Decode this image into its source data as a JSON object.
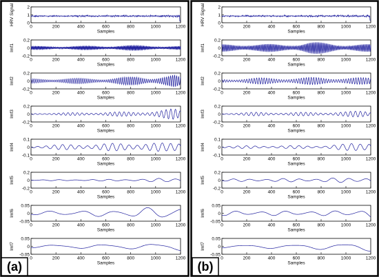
{
  "chart_data": [
    {
      "panel_label": "(a)",
      "type": "line",
      "line_color": "#1f1f9e",
      "subplots": [
        {
          "ylabel": "HRV Signal",
          "ylim": [
            0,
            2
          ],
          "yticks": [
            "2",
            "1",
            "0"
          ],
          "xlabel": "Samples",
          "xlim": [
            0,
            1200
          ],
          "xticks": [
            "0",
            "200",
            "400",
            "600",
            "800",
            "1000",
            "1200"
          ],
          "trend": 0,
          "amplitude_envelope": [
            [
              0,
              0.12
            ],
            [
              600,
              0.14
            ],
            [
              1100,
              0.16
            ],
            [
              1200,
              0.3
            ]
          ],
          "cycles_per_1200": 220,
          "note_level": 0.85
        },
        {
          "ylabel": "Imf1",
          "ylim": [
            -0.2,
            0.2
          ],
          "yticks": [
            "0.2",
            "0",
            "-0.2"
          ],
          "xlabel": "Samples",
          "xlim": [
            0,
            1200
          ],
          "xticks": [
            "0",
            "200",
            "400",
            "600",
            "800",
            "1000",
            "1200"
          ],
          "amplitude_envelope": [
            [
              0,
              0.05
            ],
            [
              600,
              0.06
            ],
            [
              700,
              0.08
            ],
            [
              900,
              0.07
            ],
            [
              1100,
              0.06
            ],
            [
              1200,
              0.05
            ]
          ],
          "cycles_per_1200": 170
        },
        {
          "ylabel": "Imf2",
          "ylim": [
            -0.2,
            0.2
          ],
          "yticks": [
            "0.2",
            "0",
            "-0.2"
          ],
          "xlabel": "Samples",
          "xlim": [
            0,
            1200
          ],
          "xticks": [
            "0",
            "200",
            "400",
            "600",
            "800",
            "1000",
            "1200"
          ],
          "amplitude_envelope": [
            [
              0,
              0.06
            ],
            [
              400,
              0.07
            ],
            [
              600,
              0.07
            ],
            [
              850,
              0.12
            ],
            [
              950,
              0.1
            ],
            [
              1150,
              0.16
            ],
            [
              1200,
              0.1
            ]
          ],
          "cycles_per_1200": 75
        },
        {
          "ylabel": "Imf3",
          "ylim": [
            -0.2,
            0.2
          ],
          "yticks": [
            "0.2",
            "0",
            "-0.2"
          ],
          "xlabel": "Samples",
          "xlim": [
            0,
            1200
          ],
          "xticks": [
            "0",
            "200",
            "400",
            "600",
            "800",
            "1000",
            "1200"
          ],
          "amplitude_envelope": [
            [
              0,
              0.02
            ],
            [
              400,
              0.04
            ],
            [
              800,
              0.06
            ],
            [
              1000,
              0.08
            ],
            [
              1150,
              0.14
            ],
            [
              1200,
              0.1
            ]
          ],
          "cycles_per_1200": 32
        },
        {
          "ylabel": "Imf4",
          "ylim": [
            -0.1,
            0.1
          ],
          "yticks": [
            "0.1",
            "0",
            "-0.1"
          ],
          "xlabel": "Samples",
          "xlim": [
            0,
            1200
          ],
          "xticks": [
            "0",
            "200",
            "400",
            "600",
            "800",
            "1000",
            "1200"
          ],
          "amplitude_envelope": [
            [
              0,
              0.02
            ],
            [
              300,
              0.035
            ],
            [
              700,
              0.05
            ],
            [
              900,
              0.06
            ],
            [
              1100,
              0.05
            ],
            [
              1200,
              0.08
            ]
          ],
          "cycles_per_1200": 18
        },
        {
          "ylabel": "Imf5",
          "ylim": [
            -0.2,
            0.2
          ],
          "yticks": [
            "0.2",
            "0",
            "-0.2"
          ],
          "xlabel": "Samples",
          "xlim": [
            0,
            1200
          ],
          "xticks": [
            "0",
            "200",
            "400",
            "600",
            "800",
            "1000",
            "1200"
          ],
          "amplitude_envelope": [
            [
              0,
              0.01
            ],
            [
              500,
              0.02
            ],
            [
              900,
              0.03
            ],
            [
              1100,
              0.06
            ],
            [
              1200,
              0.08
            ]
          ],
          "cycles_per_1200": 9
        },
        {
          "ylabel": "Imf6",
          "ylim": [
            -0.05,
            0.05
          ],
          "yticks": [
            "0.05",
            "0",
            "-0.05"
          ],
          "xlabel": "Samples",
          "xlim": [
            0,
            1200
          ],
          "xticks": [
            "0",
            "200",
            "400",
            "600",
            "800",
            "1000",
            "1200"
          ],
          "amplitude_envelope": [
            [
              0,
              0.012
            ],
            [
              400,
              0.018
            ],
            [
              800,
              0.025
            ],
            [
              1050,
              0.045
            ],
            [
              1200,
              0.04
            ]
          ],
          "cycles_per_1200": 4.6
        },
        {
          "ylabel": "Imf7",
          "ylim": [
            -0.05,
            0.05
          ],
          "yticks": [
            "0.05",
            "0",
            "-0.05"
          ],
          "xlabel": "Samples",
          "xlim": [
            0,
            1200
          ],
          "xticks": [
            "0",
            "200",
            "400",
            "600",
            "800",
            "1000",
            "1200"
          ],
          "amplitude_envelope": [
            [
              0,
              0.01
            ],
            [
              500,
              0.015
            ],
            [
              1000,
              0.02
            ],
            [
              1200,
              0.03
            ]
          ],
          "cycles_per_1200": 3
        }
      ]
    },
    {
      "panel_label": "(b)",
      "type": "line",
      "line_color": "#1f1f9e",
      "subplots": [
        {
          "ylabel": "HRV Signal",
          "ylim": [
            0,
            2
          ],
          "yticks": [
            "2",
            "1",
            "0"
          ],
          "xlabel": "Samples",
          "xlim": [
            0,
            1200
          ],
          "xticks": [
            "0",
            "200",
            "400",
            "600",
            "800",
            "1000",
            "1200"
          ],
          "trend": 0,
          "amplitude_envelope": [
            [
              0,
              0.12
            ],
            [
              600,
              0.14
            ],
            [
              1100,
              0.16
            ],
            [
              1200,
              0.25
            ]
          ],
          "cycles_per_1200": 220,
          "note_level": 0.85
        },
        {
          "ylabel": "Imf1",
          "ylim": [
            -0.2,
            0.2
          ],
          "yticks": [
            "0.2",
            "0",
            "-0.2"
          ],
          "xlabel": "Samples",
          "xlim": [
            0,
            1200
          ],
          "xticks": [
            "0",
            "200",
            "400",
            "600",
            "800",
            "1000",
            "1200"
          ],
          "amplitude_envelope": [
            [
              0,
              0.1
            ],
            [
              100,
              0.12
            ],
            [
              300,
              0.1
            ],
            [
              600,
              0.12
            ],
            [
              700,
              0.16
            ],
            [
              900,
              0.14
            ],
            [
              1000,
              0.1
            ],
            [
              1200,
              0.1
            ]
          ],
          "cycles_per_1200": 120
        },
        {
          "ylabel": "Imf2",
          "ylim": [
            -0.2,
            0.2
          ],
          "yticks": [
            "0.2",
            "0",
            "-0.2"
          ],
          "xlabel": "Samples",
          "xlim": [
            0,
            1200
          ],
          "xticks": [
            "0",
            "200",
            "400",
            "600",
            "800",
            "1000",
            "1200"
          ],
          "amplitude_envelope": [
            [
              0,
              0.05
            ],
            [
              300,
              0.08
            ],
            [
              600,
              0.08
            ],
            [
              800,
              0.1
            ],
            [
              1000,
              0.08
            ],
            [
              1200,
              0.09
            ]
          ],
          "cycles_per_1200": 60
        },
        {
          "ylabel": "Imf3",
          "ylim": [
            -0.2,
            0.2
          ],
          "yticks": [
            "0.2",
            "0",
            "-0.2"
          ],
          "xlabel": "Samples",
          "xlim": [
            0,
            1200
          ],
          "xticks": [
            "0",
            "200",
            "400",
            "600",
            "800",
            "1000",
            "1200"
          ],
          "amplitude_envelope": [
            [
              0,
              0.02
            ],
            [
              300,
              0.05
            ],
            [
              500,
              0.04
            ],
            [
              800,
              0.05
            ],
            [
              1000,
              0.06
            ],
            [
              1150,
              0.09
            ],
            [
              1200,
              0.06
            ]
          ],
          "cycles_per_1200": 30
        },
        {
          "ylabel": "Imf4",
          "ylim": [
            -0.1,
            0.1
          ],
          "yticks": [
            "0.1",
            "0",
            "-0.1"
          ],
          "xlabel": "Samples",
          "xlim": [
            0,
            1200
          ],
          "xticks": [
            "0",
            "200",
            "400",
            "600",
            "800",
            "1000",
            "1200"
          ],
          "amplitude_envelope": [
            [
              0,
              0.015
            ],
            [
              400,
              0.02
            ],
            [
              800,
              0.02
            ],
            [
              1000,
              0.04
            ],
            [
              1200,
              0.09
            ]
          ],
          "cycles_per_1200": 17
        },
        {
          "ylabel": "Imf5",
          "ylim": [
            -0.2,
            0.2
          ],
          "yticks": [
            "0.2",
            "0",
            "-0.2"
          ],
          "xlabel": "Samples",
          "xlim": [
            0,
            1200
          ],
          "xticks": [
            "0",
            "200",
            "400",
            "600",
            "800",
            "1000",
            "1200"
          ],
          "amplitude_envelope": [
            [
              0,
              0.03
            ],
            [
              400,
              0.04
            ],
            [
              800,
              0.05
            ],
            [
              1100,
              0.07
            ],
            [
              1200,
              0.08
            ]
          ],
          "cycles_per_1200": 9
        },
        {
          "ylabel": "Imf6",
          "ylim": [
            -0.05,
            0.05
          ],
          "yticks": [
            "0.05",
            "0",
            "-0.05"
          ],
          "xlabel": "Samples",
          "xlim": [
            0,
            1200
          ],
          "xticks": [
            "0",
            "200",
            "400",
            "600",
            "800",
            "1000",
            "1200"
          ],
          "amplitude_envelope": [
            [
              0,
              0.015
            ],
            [
              400,
              0.015
            ],
            [
              800,
              0.015
            ],
            [
              1100,
              0.02
            ],
            [
              1200,
              0.03
            ]
          ],
          "cycles_per_1200": 6
        },
        {
          "ylabel": "Imf7",
          "ylim": [
            -0.05,
            0.05
          ],
          "yticks": [
            "0.05",
            "0",
            "-0.05"
          ],
          "xlabel": "Samples",
          "xlim": [
            0,
            1200
          ],
          "xticks": [
            "0",
            "200",
            "400",
            "600",
            "800",
            "1000",
            "1200"
          ],
          "amplitude_envelope": [
            [
              0,
              0.01
            ],
            [
              600,
              0.015
            ],
            [
              1000,
              0.025
            ],
            [
              1200,
              0.03
            ]
          ],
          "cycles_per_1200": 3
        }
      ]
    }
  ]
}
